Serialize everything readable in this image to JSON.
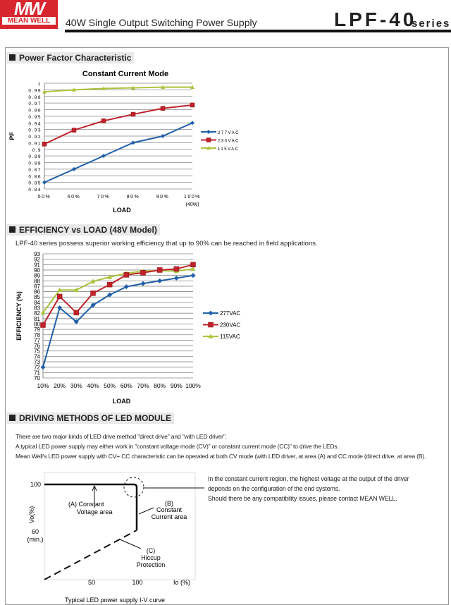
{
  "header": {
    "logo_text": "MEAN WELL",
    "doc_title": "40W Single Output Switching Power Supply",
    "model": "LPF-40",
    "series": "series"
  },
  "sections": {
    "pf": "Power Factor Characteristic",
    "eff": "EFFICIENCY vs LOAD (48V Model)",
    "drive": "DRIVING METHODS OF LED MODULE"
  },
  "eff_note": "LPF-40 series possess superior working efficiency that up to 90% can be reached in field applications.",
  "drive_text": [
    "There are two major kinds of LED drive method \"direct drive\" and \"with LED driver\".",
    "A typical LED power supply may either work in \"constant voltage mode (CV)\" or constant current mode (CC)\" to drive the LEDs.",
    "Mean Well's LED power supply with CV+ CC characteristic can be operated at both CV mode (with LED driver, at area (A) and CC mode (direct drive, at area (B)."
  ],
  "cc_note": [
    "In the constant current region, the highest voltage at the output of the driver",
    "depends on the configuration of the end systems.",
    "Should there be any compatibility issues, please contact MEAN WELL."
  ],
  "iv": {
    "y100": "100",
    "y60": "60",
    "y60b": "(min.)",
    "ylabel": "Vo(%)",
    "x50": "50",
    "x100": "100",
    "xlabel": "Io (%)",
    "a": "(A)   Constant",
    "a2": "Voltage area",
    "b": "(B)",
    "b2": "Constant",
    "b3": "Current area",
    "c": "(C)",
    "c2": "Hiccup",
    "c3": "Protection",
    "caption": "Typical LED power supply I-V curve"
  },
  "colors": {
    "s277": "#1f5fa8",
    "s230": "#c0222a",
    "s115": "#a8c43a"
  },
  "chart_data": [
    {
      "type": "line",
      "title": "Constant Current Mode",
      "xlabel": "LOAD",
      "ylabel": "PF",
      "x_sub": "(40W)",
      "categories": [
        "50%",
        "60%",
        "70%",
        "80%",
        "90%",
        "100%"
      ],
      "yticks": [
        "0.84",
        "0.85",
        "0.86",
        "0.87",
        "0.88",
        "0.89",
        "0.9",
        "0.91",
        "0.92",
        "0.93",
        "0.94",
        "0.95",
        "0.96",
        "0.97",
        "0.98",
        "0.99",
        "1"
      ],
      "ylim": [
        0.84,
        1.0
      ],
      "legend": "right",
      "series": [
        {
          "name": "277VAC",
          "values": [
            0.85,
            0.87,
            0.89,
            0.91,
            0.92,
            0.94
          ]
        },
        {
          "name": "230VAC",
          "values": [
            0.908,
            0.929,
            0.943,
            0.953,
            0.962,
            0.967
          ]
        },
        {
          "name": "115VAC",
          "values": [
            0.987,
            0.99,
            0.992,
            0.993,
            0.994,
            0.994
          ]
        }
      ]
    },
    {
      "type": "line",
      "title": "",
      "xlabel": "LOAD",
      "ylabel": "EFFICIENCY (%)",
      "categories": [
        "10%",
        "20%",
        "30%",
        "40%",
        "50%",
        "60%",
        "70%",
        "80%",
        "90%",
        "100%"
      ],
      "ylim": [
        70,
        93
      ],
      "legend": "right",
      "series": [
        {
          "name": "277VAC",
          "values": [
            72,
            83,
            80.4,
            83.5,
            85.4,
            86.9,
            87.5,
            88,
            88.5,
            89
          ]
        },
        {
          "name": "230VAC",
          "values": [
            79.8,
            85.1,
            82.1,
            85.7,
            87.3,
            89.1,
            89.5,
            90,
            90.2,
            91
          ]
        },
        {
          "name": "115VAC",
          "values": [
            82.1,
            86.3,
            86.3,
            87.9,
            88.7,
            89.4,
            89.8,
            89.9,
            89.8,
            90.2
          ]
        }
      ]
    }
  ]
}
